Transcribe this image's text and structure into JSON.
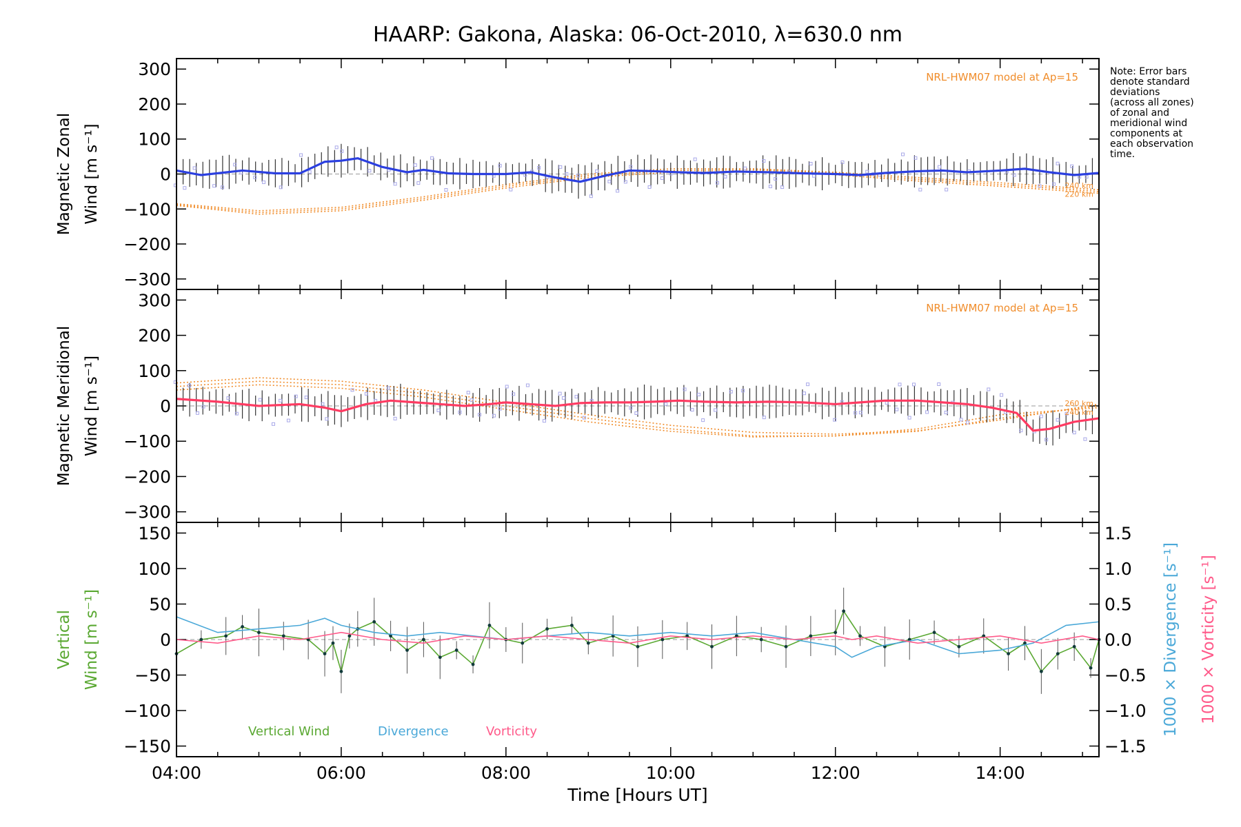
{
  "chart_data": {
    "title": "HAARP: Gakona,  Alaska: 06-Oct-2010, λ=630.0 nm",
    "note_lines": [
      "Note: Error bars",
      "denote standard",
      "deviations",
      "(across all zones)",
      "of zonal and",
      "meridional wind",
      "components at",
      "each observation",
      "time."
    ],
    "xlabel": "Time [Hours UT]",
    "x_ticks": [
      "04:00",
      "06:00",
      "08:00",
      "10:00",
      "12:00",
      "14:00"
    ],
    "x_range": [
      4.0,
      15.2
    ],
    "colors": {
      "zonal": "#2b3fe0",
      "zonal_alt": "#3ab0e8",
      "meridional": "#ff3b62",
      "vertical": "#5aa832",
      "divergence": "#4aa8d8",
      "vorticity": "#ff5a8a",
      "model": "#f08c2a",
      "samples": "#a8a8e8"
    },
    "panels": [
      {
        "type": "line",
        "id": "zonal",
        "ylabel_lines": [
          "Magnetic Zonal",
          "Wind [m s⁻¹]"
        ],
        "ylim": [
          -330,
          330
        ],
        "y_ticks": [
          300,
          200,
          100,
          0,
          -100,
          -200,
          -300
        ],
        "annotation": "NRL-HWM07 model at Ap=15",
        "model_labels": [
          "240 km",
          "220 km"
        ],
        "series": [
          {
            "role": "observed",
            "x": [
              4.0,
              4.3,
              4.8,
              5.2,
              5.5,
              5.8,
              6.0,
              6.2,
              6.5,
              6.8,
              7.0,
              7.3,
              7.6,
              8.0,
              8.3,
              8.6,
              8.9,
              9.2,
              9.5,
              9.8,
              10.1,
              10.4,
              10.8,
              11.2,
              11.6,
              12.0,
              12.3,
              12.6,
              13.0,
              13.3,
              13.6,
              14.0,
              14.3,
              14.6,
              14.9,
              15.2
            ],
            "values": [
              10,
              -3,
              10,
              2,
              2,
              35,
              38,
              45,
              20,
              5,
              12,
              2,
              0,
              0,
              5,
              -10,
              -22,
              -5,
              10,
              8,
              5,
              3,
              7,
              5,
              2,
              0,
              -3,
              3,
              8,
              10,
              5,
              10,
              15,
              5,
              -3,
              3
            ]
          }
        ],
        "model_curves": [
          {
            "x": [
              4.0,
              5.0,
              6.0,
              7.0,
              8.0,
              9.0,
              10.0,
              11.0,
              12.0,
              13.0,
              14.0,
              15.2
            ],
            "values": [
              -85,
              -105,
              -95,
              -65,
              -30,
              0,
              15,
              15,
              5,
              -10,
              -25,
              -45
            ]
          },
          {
            "x": [
              4.0,
              5.0,
              6.0,
              7.0,
              8.0,
              9.0,
              10.0,
              11.0,
              12.0,
              13.0,
              14.0,
              15.2
            ],
            "values": [
              -88,
              -110,
              -100,
              -70,
              -35,
              -5,
              10,
              12,
              2,
              -15,
              -30,
              -50
            ]
          },
          {
            "x": [
              4.0,
              5.0,
              6.0,
              7.0,
              8.0,
              9.0,
              10.0,
              11.0,
              12.0,
              13.0,
              14.0,
              15.2
            ],
            "values": [
              -90,
              -115,
              -105,
              -75,
              -40,
              -10,
              5,
              8,
              -2,
              -20,
              -35,
              -55
            ]
          }
        ]
      },
      {
        "type": "line",
        "id": "meridional",
        "ylabel_lines": [
          "Magnetic Meridional",
          "Wind [m s⁻¹]"
        ],
        "ylim": [
          -330,
          330
        ],
        "y_ticks": [
          300,
          200,
          100,
          0,
          -100,
          -200,
          -300
        ],
        "annotation": "NRL-HWM07 model at Ap=15",
        "model_labels": [
          "260 km",
          "240 km"
        ],
        "series": [
          {
            "role": "observed",
            "x": [
              4.0,
              4.5,
              5.0,
              5.5,
              5.8,
              6.0,
              6.3,
              6.6,
              6.9,
              7.2,
              7.5,
              7.8,
              8.0,
              8.3,
              8.6,
              8.9,
              9.2,
              9.5,
              9.8,
              10.1,
              10.4,
              10.8,
              11.2,
              11.6,
              12.0,
              12.3,
              12.6,
              13.0,
              13.3,
              13.6,
              13.9,
              14.2,
              14.4,
              14.6,
              14.9,
              15.2
            ],
            "values": [
              20,
              12,
              0,
              5,
              -5,
              -15,
              5,
              15,
              10,
              5,
              0,
              5,
              10,
              5,
              0,
              8,
              10,
              10,
              12,
              15,
              12,
              10,
              12,
              10,
              5,
              10,
              15,
              15,
              10,
              5,
              -5,
              -20,
              -70,
              -65,
              -45,
              -35
            ]
          }
        ],
        "model_curves": [
          {
            "x": [
              4.0,
              5.0,
              6.0,
              7.0,
              8.0,
              9.0,
              10.0,
              11.0,
              12.0,
              13.0,
              14.0,
              15.2
            ],
            "values": [
              65,
              80,
              70,
              45,
              10,
              -25,
              -55,
              -75,
              -80,
              -70,
              -40,
              5
            ]
          },
          {
            "x": [
              4.0,
              5.0,
              6.0,
              7.0,
              8.0,
              9.0,
              10.0,
              11.0,
              12.0,
              13.0,
              14.0,
              15.2
            ],
            "values": [
              55,
              70,
              60,
              35,
              0,
              -35,
              -65,
              -85,
              -85,
              -72,
              -35,
              0
            ]
          },
          {
            "x": [
              4.0,
              5.0,
              6.0,
              7.0,
              8.0,
              9.0,
              10.0,
              11.0,
              12.0,
              13.0,
              14.0,
              15.2
            ],
            "values": [
              45,
              60,
              50,
              25,
              -10,
              -45,
              -72,
              -88,
              -85,
              -65,
              -25,
              -5
            ]
          }
        ]
      },
      {
        "type": "line",
        "id": "vertical",
        "ylabel_lines": [
          "Vertical",
          "Wind [m s⁻¹]"
        ],
        "ylim": [
          -165,
          165
        ],
        "y_ticks": [
          150,
          100,
          50,
          0,
          -50,
          -100,
          -150
        ],
        "y2label_lines": [
          "1000 × Divergence [s⁻¹]",
          "1000 × Vorticity [s⁻¹]"
        ],
        "y2lim": [
          -1.65,
          1.65
        ],
        "y2_ticks": [
          "1.5",
          "1.0",
          "0.5",
          "0.0",
          "−0.5",
          "−1.0",
          "−1.5"
        ],
        "y2_tick_values": [
          1.5,
          1.0,
          0.5,
          0.0,
          -0.5,
          -1.0,
          -1.5
        ],
        "legend": [
          "Vertical Wind",
          "Divergence",
          "Vorticity"
        ],
        "series": [
          {
            "name": "Vertical Wind",
            "axis": "left",
            "x": [
              4.0,
              4.3,
              4.6,
              4.8,
              5.0,
              5.3,
              5.6,
              5.8,
              5.9,
              6.0,
              6.1,
              6.2,
              6.4,
              6.6,
              6.8,
              7.0,
              7.2,
              7.4,
              7.6,
              7.8,
              8.0,
              8.2,
              8.5,
              8.8,
              9.0,
              9.3,
              9.6,
              9.9,
              10.2,
              10.5,
              10.8,
              11.1,
              11.4,
              11.7,
              12.0,
              12.1,
              12.3,
              12.6,
              12.9,
              13.2,
              13.5,
              13.8,
              14.1,
              14.3,
              14.5,
              14.7,
              14.9,
              15.1,
              15.2
            ],
            "values": [
              -20,
              0,
              5,
              18,
              10,
              5,
              0,
              -20,
              -5,
              -45,
              5,
              15,
              25,
              5,
              -15,
              0,
              -25,
              -15,
              -35,
              20,
              0,
              -5,
              15,
              20,
              -5,
              5,
              -10,
              0,
              5,
              -10,
              5,
              0,
              -10,
              5,
              10,
              40,
              5,
              -10,
              0,
              10,
              -10,
              5,
              -20,
              -5,
              -45,
              -20,
              -10,
              -40,
              0
            ]
          },
          {
            "name": "Divergence",
            "axis": "right",
            "x": [
              4.0,
              4.5,
              5.0,
              5.5,
              5.8,
              6.0,
              6.4,
              6.8,
              7.2,
              7.6,
              8.0,
              8.5,
              9.0,
              9.5,
              10.0,
              10.5,
              11.0,
              11.5,
              12.0,
              12.2,
              12.5,
              13.0,
              13.5,
              14.0,
              14.4,
              14.8,
              15.2
            ],
            "values": [
              0.32,
              0.1,
              0.15,
              0.2,
              0.3,
              0.2,
              0.1,
              0.05,
              0.1,
              0.05,
              0.0,
              0.05,
              0.1,
              0.05,
              0.1,
              0.05,
              0.1,
              0.0,
              -0.1,
              -0.25,
              -0.1,
              0.0,
              -0.2,
              -0.15,
              -0.05,
              0.2,
              0.25
            ]
          },
          {
            "name": "Vorticity",
            "axis": "right",
            "x": [
              4.0,
              4.5,
              5.0,
              5.5,
              6.0,
              6.5,
              7.0,
              7.5,
              8.0,
              8.5,
              9.0,
              9.5,
              10.0,
              10.5,
              11.0,
              11.5,
              12.0,
              12.2,
              12.5,
              13.0,
              13.5,
              14.0,
              14.5,
              15.0,
              15.2
            ],
            "values": [
              0.0,
              -0.05,
              0.05,
              0.0,
              0.1,
              0.0,
              -0.05,
              0.05,
              0.0,
              0.05,
              0.0,
              -0.05,
              0.05,
              0.0,
              0.05,
              0.0,
              0.05,
              0.0,
              0.05,
              -0.05,
              0.0,
              0.05,
              -0.05,
              0.05,
              0.0
            ]
          }
        ]
      }
    ]
  }
}
